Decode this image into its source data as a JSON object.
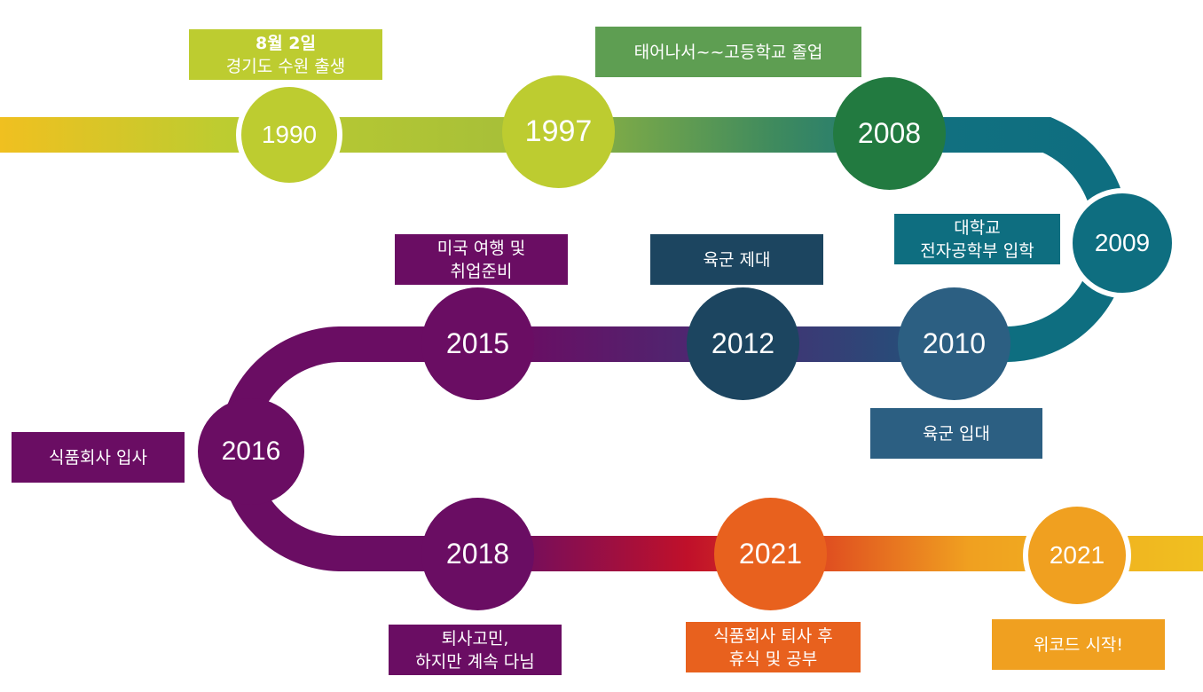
{
  "colors": {
    "lime": "#bdcc30",
    "green": "#5e9e52",
    "darkgreen": "#227a40",
    "teal": "#0e6e80",
    "navy": "#1c4560",
    "slate": "#2c5f82",
    "purple": "#6a0d63",
    "orange": "#e8611e",
    "amber": "#f0a020",
    "yellow": "#f0c020"
  },
  "milestones": [
    {
      "year": "1990",
      "label_lines": [
        "8월 2일",
        "경기도 수원 출생"
      ]
    },
    {
      "year": "1997",
      "label_lines": [
        "태어나서~~고등학교 졸업"
      ]
    },
    {
      "year": "2008",
      "label_lines": []
    },
    {
      "year": "2009",
      "label_lines": [
        "대학교",
        "전자공학부 입학"
      ]
    },
    {
      "year": "2010",
      "label_lines": [
        "육군 입대"
      ]
    },
    {
      "year": "2012",
      "label_lines": [
        "육군 제대"
      ]
    },
    {
      "year": "2015",
      "label_lines": [
        "미국 여행 및",
        "취업준비"
      ]
    },
    {
      "year": "2016",
      "label_lines": [
        "식품회사 입사"
      ]
    },
    {
      "year": "2018",
      "label_lines": [
        "퇴사고민,",
        "하지만 계속 다님"
      ]
    },
    {
      "year": "2021",
      "label_lines": [
        "식품회사 퇴사 후",
        "휴식 및 공부"
      ]
    },
    {
      "year": "2021",
      "label_lines": [
        "위코드 시작!"
      ]
    }
  ]
}
